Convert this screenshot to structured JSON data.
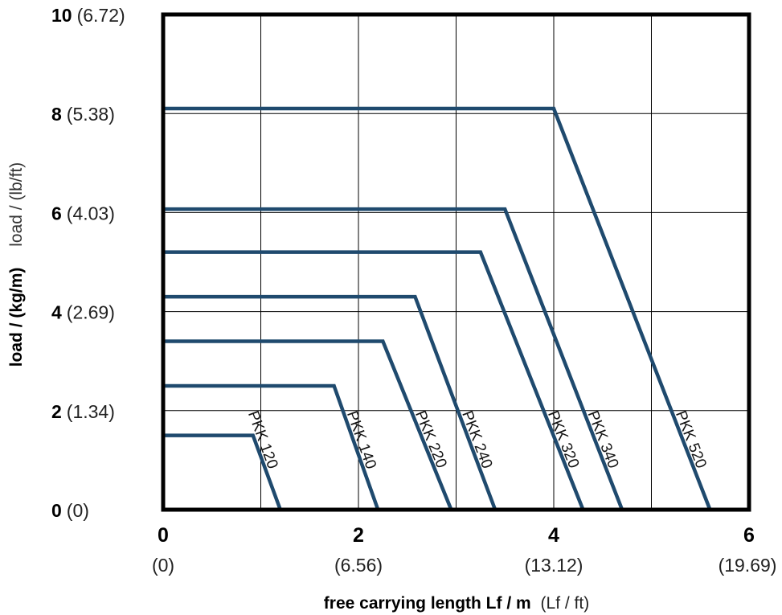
{
  "chart_data": {
    "type": "line",
    "title": "",
    "xlabel_main": "free carrying length Lf / m",
    "xlabel_alt": "(Lf / ft)",
    "ylabel_main": "load / (kg/m)",
    "ylabel_alt": "load / (lb/ft)",
    "xlim": [
      0,
      6
    ],
    "ylim": [
      0,
      10
    ],
    "x_ticks": [
      {
        "main": "0",
        "alt": "(0)"
      },
      {
        "main": "2",
        "alt": "(6.56)"
      },
      {
        "main": "4",
        "alt": "(13.12)"
      },
      {
        "main": "6",
        "alt": "(19.69)"
      }
    ],
    "y_ticks": [
      {
        "main": "0",
        "alt": "(0)"
      },
      {
        "main": "2",
        "alt": "(1.34)"
      },
      {
        "main": "4",
        "alt": "(2.69)"
      },
      {
        "main": "6",
        "alt": "(4.03)"
      },
      {
        "main": "8",
        "alt": "(5.38)"
      },
      {
        "main": "10",
        "alt": "(6.72)"
      }
    ],
    "grid": true,
    "line_color": "#1f4a6e",
    "series": [
      {
        "name": "PKK 120",
        "x": [
          0,
          0.92,
          1.2
        ],
        "y": [
          1.5,
          1.5,
          0
        ]
      },
      {
        "name": "PKK 140",
        "x": [
          0,
          1.75,
          2.2
        ],
        "y": [
          2.5,
          2.5,
          0
        ]
      },
      {
        "name": "PKK 220",
        "x": [
          0,
          2.25,
          2.95
        ],
        "y": [
          3.4,
          3.4,
          0
        ]
      },
      {
        "name": "PKK 240",
        "x": [
          0,
          2.58,
          3.4
        ],
        "y": [
          4.3,
          4.3,
          0
        ]
      },
      {
        "name": "PKK 320",
        "x": [
          0,
          3.25,
          4.3
        ],
        "y": [
          5.2,
          5.2,
          0
        ]
      },
      {
        "name": "PKK 340",
        "x": [
          0,
          3.5,
          4.7
        ],
        "y": [
          6.07,
          6.07,
          0
        ]
      },
      {
        "name": "PKK 520",
        "x": [
          0,
          4.0,
          5.6
        ],
        "y": [
          8.1,
          8.1,
          0
        ]
      }
    ]
  }
}
